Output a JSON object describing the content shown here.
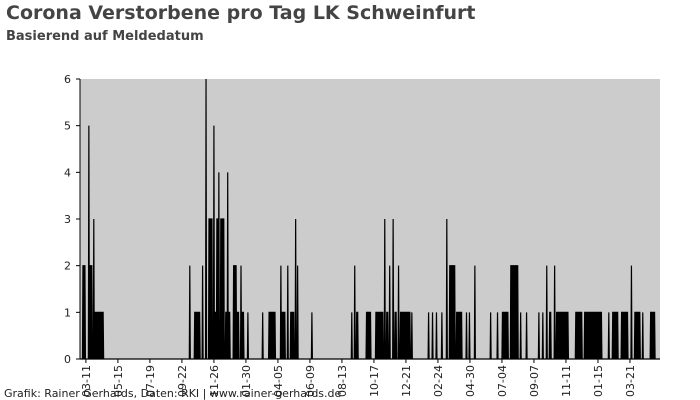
{
  "chart_data": {
    "type": "area",
    "title": "Corona Verstorbene pro Tag LK Schweinfurt",
    "subtitle": "Basierend auf Meldedatum",
    "footer": "Grafik: Rainer Gerhards, Daten: RKI | www.rainer-gerhards.de",
    "color": "#000000",
    "background": "#cccccc",
    "xlim": [
      -12,
      1166
    ],
    "ylim": [
      0,
      6
    ],
    "yticks": [
      0,
      1,
      2,
      3,
      4,
      5,
      6
    ],
    "xticks": [
      {
        "value": 0,
        "label": "03-11"
      },
      {
        "value": 65,
        "label": "05-15"
      },
      {
        "value": 130,
        "label": "07-19"
      },
      {
        "value": 195,
        "label": "09-22"
      },
      {
        "value": 260,
        "label": "11-26"
      },
      {
        "value": 325,
        "label": "01-30"
      },
      {
        "value": 390,
        "label": "04-05"
      },
      {
        "value": 455,
        "label": "06-09"
      },
      {
        "value": 520,
        "label": "08-13"
      },
      {
        "value": 585,
        "label": "10-17"
      },
      {
        "value": 650,
        "label": "12-21"
      },
      {
        "value": 715,
        "label": "02-24"
      },
      {
        "value": 780,
        "label": "04-30"
      },
      {
        "value": 845,
        "label": "07-04"
      },
      {
        "value": 910,
        "label": "09-07"
      },
      {
        "value": 975,
        "label": "11-11"
      },
      {
        "value": 1040,
        "label": "01-15"
      },
      {
        "value": 1105,
        "label": "03-21"
      }
    ],
    "x": [
      -12,
      -7,
      -6,
      -2,
      -1,
      5,
      6,
      7,
      7,
      8,
      12,
      13,
      15,
      16,
      17,
      17,
      18,
      35,
      36,
      210,
      211,
      212,
      220,
      221,
      231,
      232,
      236,
      237,
      238,
      243,
      244,
      245,
      249,
      250,
      256,
      257,
      259,
      260,
      261,
      261,
      262,
      264,
      265,
      265,
      266,
      268,
      269,
      270,
      271,
      273,
      274,
      280,
      281,
      283,
      284,
      286,
      287,
      287,
      288,
      289,
      289,
      290,
      292,
      293,
      299,
      300,
      305,
      306,
      307,
      308,
      310,
      311,
      314,
      315,
      316,
      317,
      318,
      320,
      321,
      328,
      329,
      330,
      358,
      359,
      360,
      371,
      372,
      384,
      385,
      395,
      396,
      397,
      398,
      399,
      404,
      405,
      409,
      410,
      411,
      415,
      416,
      422,
      423,
      425,
      426,
      427,
      429,
      430,
      431,
      458,
      459,
      460,
      539,
      540,
      541,
      545,
      546,
      547,
      549,
      550,
      552,
      553,
      569,
      570,
      578,
      579,
      588,
      589,
      603,
      604,
      606,
      607,
      608,
      610,
      611,
      613,
      614,
      616,
      617,
      618,
      623,
      624,
      625,
      627,
      628,
      630,
      631,
      634,
      635,
      636,
      638,
      639,
      658,
      659,
      661,
      662,
      663,
      695,
      696,
      697,
      703,
      704,
      705,
      711,
      712,
      713,
      722,
      723,
      724,
      732,
      733,
      734,
      738,
      739,
      749,
      750,
      752,
      753,
      763,
      764,
      772,
      773,
      774,
      778,
      779,
      780,
      789,
      790,
      791,
      821,
      822,
      823,
      835,
      836,
      837,
      845,
      846,
      857,
      858,
      862,
      863,
      877,
      878,
      882,
      883,
      884,
      894,
      895,
      896,
      919,
      920,
      921,
      927,
      928,
      929,
      935,
      936,
      937,
      941,
      942,
      944,
      945,
      951,
      952,
      953,
      955,
      956,
      979,
      980,
      994,
      995,
      1007,
      1008,
      1012,
      1013,
      1047,
      1048,
      1061,
      1062,
      1063,
      1069,
      1070,
      1080,
      1081,
      1087,
      1088,
      1100,
      1101,
      1107,
      1108,
      1109,
      1114,
      1115,
      1125,
      1126,
      1130,
      1131,
      1132,
      1146,
      1147,
      1155,
      1156,
      1166
    ],
    "values": [
      0,
      0,
      2,
      2,
      0,
      0,
      5,
      0,
      0,
      2,
      2,
      0,
      0,
      3,
      0,
      0,
      1,
      1,
      0,
      0,
      2,
      0,
      0,
      1,
      1,
      0,
      0,
      2,
      0,
      0,
      6,
      0,
      0,
      3,
      3,
      0,
      0,
      5,
      0,
      0,
      1,
      1,
      0,
      0,
      3,
      3,
      0,
      4,
      0,
      0,
      3,
      3,
      0,
      0,
      1,
      1,
      0,
      0,
      4,
      0,
      0,
      1,
      1,
      0,
      0,
      2,
      2,
      0,
      0,
      1,
      1,
      0,
      0,
      2,
      0,
      0,
      1,
      1,
      0,
      0,
      1,
      0,
      0,
      1,
      0,
      0,
      1,
      1,
      0,
      0,
      2,
      0,
      0,
      1,
      1,
      0,
      0,
      2,
      0,
      0,
      1,
      1,
      0,
      0,
      3,
      0,
      0,
      2,
      0,
      0,
      1,
      0,
      0,
      1,
      0,
      0,
      2,
      0,
      0,
      1,
      1,
      0,
      0,
      1,
      1,
      0,
      0,
      1,
      1,
      0,
      0,
      3,
      0,
      0,
      1,
      1,
      0,
      0,
      2,
      0,
      0,
      3,
      0,
      0,
      1,
      1,
      0,
      0,
      2,
      0,
      0,
      1,
      1,
      0,
      0,
      1,
      0,
      0,
      1,
      0,
      0,
      1,
      0,
      0,
      1,
      0,
      0,
      1,
      0,
      0,
      3,
      0,
      0,
      2,
      2,
      0,
      0,
      1,
      1,
      0,
      0,
      1,
      0,
      0,
      1,
      0,
      0,
      2,
      0,
      0,
      1,
      0,
      0,
      1,
      0,
      0,
      1,
      1,
      0,
      0,
      2,
      2,
      0,
      0,
      1,
      0,
      0,
      1,
      0,
      0,
      1,
      0,
      0,
      1,
      0,
      0,
      2,
      0,
      0,
      1,
      1,
      0,
      0,
      2,
      0,
      0,
      1,
      1,
      0,
      0,
      1,
      1,
      0,
      0,
      1,
      1,
      0,
      0,
      1,
      0,
      0,
      1,
      1,
      0,
      0,
      1,
      1,
      0,
      0,
      2,
      0,
      0,
      1,
      1,
      0,
      0,
      1,
      0,
      0,
      1,
      1,
      0,
      0
    ]
  }
}
